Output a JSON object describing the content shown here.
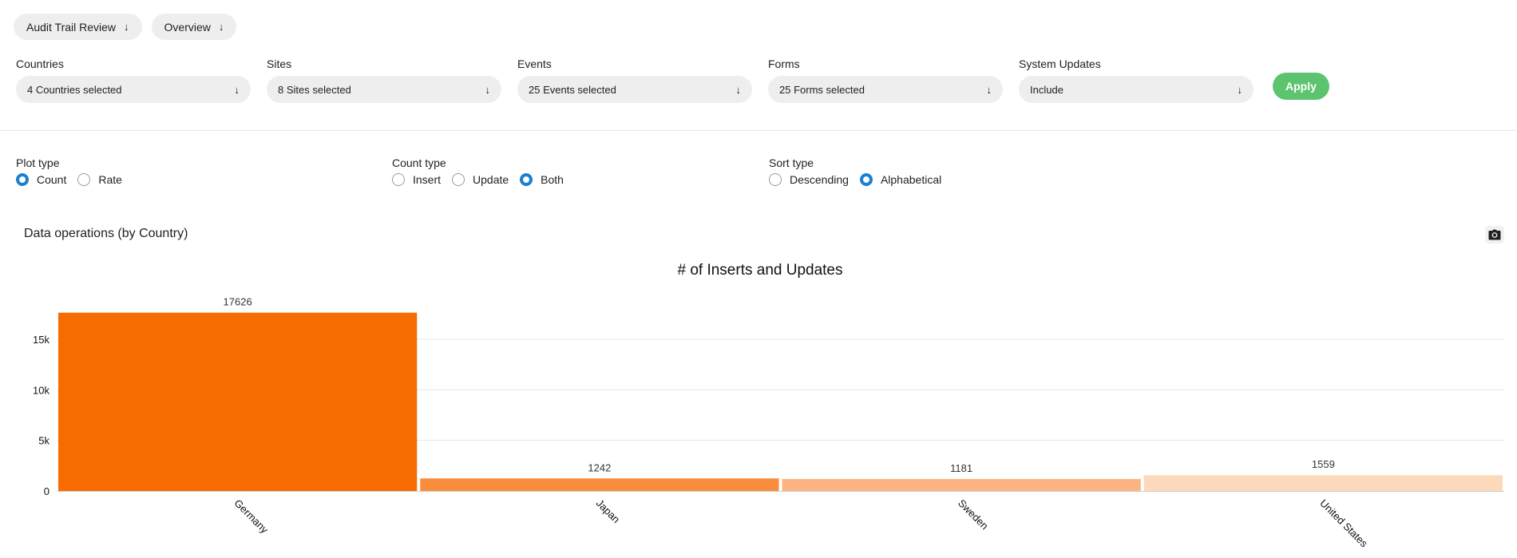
{
  "header": {
    "tabs": [
      {
        "label": "Audit Trail Review"
      },
      {
        "label": "Overview"
      }
    ]
  },
  "filters": {
    "countries": {
      "label": "Countries",
      "value": "4 Countries selected"
    },
    "sites": {
      "label": "Sites",
      "value": "8 Sites selected"
    },
    "events": {
      "label": "Events",
      "value": "25 Events selected"
    },
    "forms": {
      "label": "Forms",
      "value": "25 Forms selected"
    },
    "system_updates": {
      "label": "System Updates",
      "value": "Include"
    },
    "apply_label": "Apply"
  },
  "options": {
    "plot_type": {
      "title": "Plot type",
      "items": [
        "Count",
        "Rate"
      ],
      "selected": "Count"
    },
    "count_type": {
      "title": "Count type",
      "items": [
        "Insert",
        "Update",
        "Both"
      ],
      "selected": "Both"
    },
    "sort_type": {
      "title": "Sort type",
      "items": [
        "Descending",
        "Alphabetical"
      ],
      "selected": "Alphabetical"
    }
  },
  "panel": {
    "title": "Data operations (by Country)",
    "camera_icon": "camera-icon"
  },
  "colors": {
    "accent": "#1a7fd1",
    "apply": "#5cc46e",
    "bar_colors": [
      "#f76b00",
      "#f98d3d",
      "#fbb482",
      "#fdd9bb"
    ]
  },
  "chart_data": {
    "type": "bar",
    "title": "# of Inserts and Updates",
    "categories": [
      "Germany",
      "Japan",
      "Sweden",
      "United States"
    ],
    "values": [
      17626,
      1242,
      1181,
      1559
    ],
    "yticks": [
      0,
      5000,
      10000,
      15000
    ],
    "ytick_labels": [
      "0",
      "5k",
      "10k",
      "15k"
    ],
    "ylim": [
      0,
      18550
    ],
    "grid": true,
    "xlabel": "",
    "ylabel": ""
  }
}
